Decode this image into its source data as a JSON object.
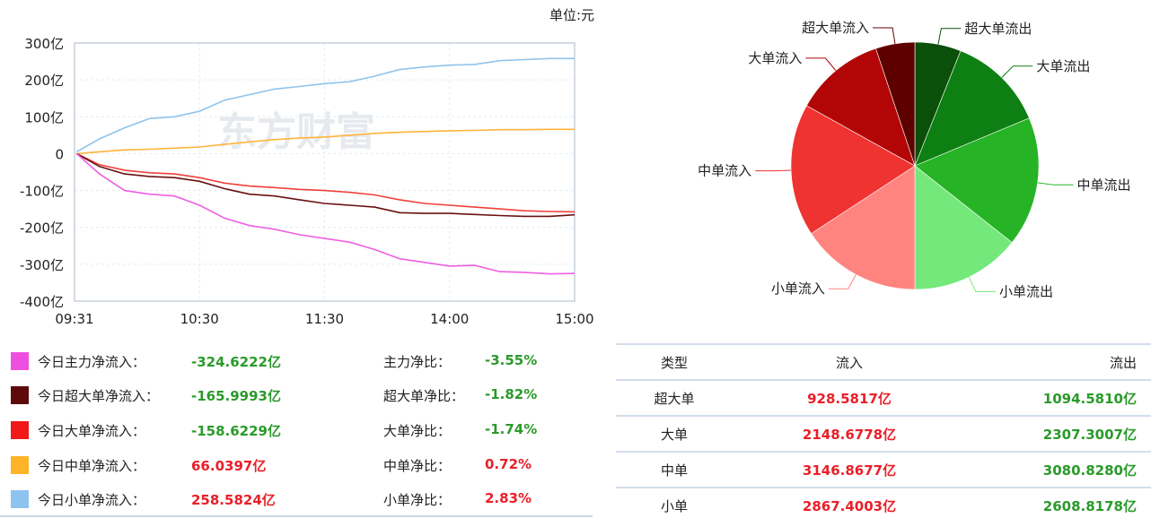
{
  "unit_label": "单位:元",
  "watermark": "东方财富",
  "chart_data": [
    {
      "type": "line",
      "ylim": [
        -400,
        300
      ],
      "yticks": [
        "300亿",
        "200亿",
        "100亿",
        "0",
        "-100亿",
        "-200亿",
        "-300亿",
        "-400亿"
      ],
      "ytick_values": [
        300,
        200,
        100,
        0,
        -100,
        -200,
        -300,
        -400
      ],
      "xticks": [
        "09:31",
        "10:30",
        "11:30",
        "14:00",
        "15:00"
      ],
      "grid": true,
      "y_unit": "亿",
      "x": [
        "09:31",
        "09:42",
        "09:54",
        "10:06",
        "10:18",
        "10:30",
        "10:42",
        "10:54",
        "11:06",
        "11:18",
        "11:30",
        "13:12",
        "13:24",
        "13:36",
        "13:48",
        "14:00",
        "14:12",
        "14:24",
        "14:36",
        "14:48",
        "15:00"
      ],
      "series": [
        {
          "name": "今日小单净流入",
          "color": "#8ec3ec",
          "values": [
            5,
            40,
            70,
            95,
            100,
            115,
            145,
            160,
            175,
            182,
            190,
            195,
            210,
            228,
            235,
            240,
            242,
            252,
            255,
            258,
            258
          ]
        },
        {
          "name": "今日中单净流入",
          "color": "#ffb43a",
          "values": [
            0,
            5,
            10,
            12,
            15,
            18,
            25,
            32,
            38,
            42,
            45,
            50,
            55,
            58,
            60,
            62,
            63,
            65,
            65,
            66,
            66
          ]
        },
        {
          "name": "今日大单净流入",
          "color": "#f0403a",
          "values": [
            0,
            -30,
            -45,
            -52,
            -55,
            -65,
            -80,
            -88,
            -92,
            -97,
            -100,
            -105,
            -112,
            -125,
            -135,
            -140,
            -145,
            -150,
            -155,
            -157,
            -158
          ]
        },
        {
          "name": "今日超大单净流入",
          "color": "#6a1010",
          "values": [
            0,
            -35,
            -55,
            -62,
            -65,
            -75,
            -95,
            -110,
            -115,
            -125,
            -135,
            -140,
            -145,
            -160,
            -162,
            -162,
            -165,
            -168,
            -170,
            -170,
            -166
          ]
        },
        {
          "name": "今日主力净流入",
          "color": "#ee5fe0",
          "values": [
            0,
            -55,
            -100,
            -110,
            -115,
            -140,
            -175,
            -195,
            -205,
            -220,
            -230,
            -240,
            -260,
            -285,
            -295,
            -305,
            -303,
            -320,
            -322,
            -326,
            -325
          ]
        }
      ]
    },
    {
      "type": "pie",
      "slices": [
        {
          "label": "超大单流出",
          "value": 1094.581,
          "color": "#0a4f0a"
        },
        {
          "label": "大单流出",
          "value": 2307.3007,
          "color": "#0e7f12"
        },
        {
          "label": "中单流出",
          "value": 3080.828,
          "color": "#26b326"
        },
        {
          "label": "小单流出",
          "value": 2608.8178,
          "color": "#74e87a"
        },
        {
          "label": "小单流入",
          "value": 2867.4003,
          "color": "#ff8480"
        },
        {
          "label": "中单流入",
          "value": 3146.8677,
          "color": "#ef3330"
        },
        {
          "label": "大单流入",
          "value": 2148.6778,
          "color": "#b20606"
        },
        {
          "label": "超大单流入",
          "value": 928.5817,
          "color": "#5e0000"
        }
      ]
    }
  ],
  "legend": [
    {
      "color": "#ee4fe0",
      "label": "今日主力净流入：",
      "value": "-324.6222亿",
      "ratio_label": "主力净比：",
      "ratio": "-3.55%",
      "sign": "neg"
    },
    {
      "color": "#5e0a0a",
      "label": "今日超大单净流入：",
      "value": "-165.9993亿",
      "ratio_label": "超大单净比：",
      "ratio": "-1.82%",
      "sign": "neg"
    },
    {
      "color": "#f01818",
      "label": "今日大单净流入：",
      "value": "-158.6229亿",
      "ratio_label": "大单净比：",
      "ratio": "-1.74%",
      "sign": "neg"
    },
    {
      "color": "#ffb428",
      "label": "今日中单净流入：",
      "value": "66.0397亿",
      "ratio_label": "中单净比：",
      "ratio": "0.72%",
      "sign": "pos"
    },
    {
      "color": "#8ec3f0",
      "label": "今日小单净流入：",
      "value": "258.5824亿",
      "ratio_label": "小单净比：",
      "ratio": "2.83%",
      "sign": "pos"
    }
  ],
  "table": {
    "headers": [
      "类型",
      "流入",
      "流出"
    ],
    "rows": [
      [
        "超大单",
        "928.5817亿",
        "1094.5810亿"
      ],
      [
        "大单",
        "2148.6778亿",
        "2307.3007亿"
      ],
      [
        "中单",
        "3146.8677亿",
        "3080.8280亿"
      ],
      [
        "小单",
        "2867.4003亿",
        "2608.8178亿"
      ]
    ]
  }
}
